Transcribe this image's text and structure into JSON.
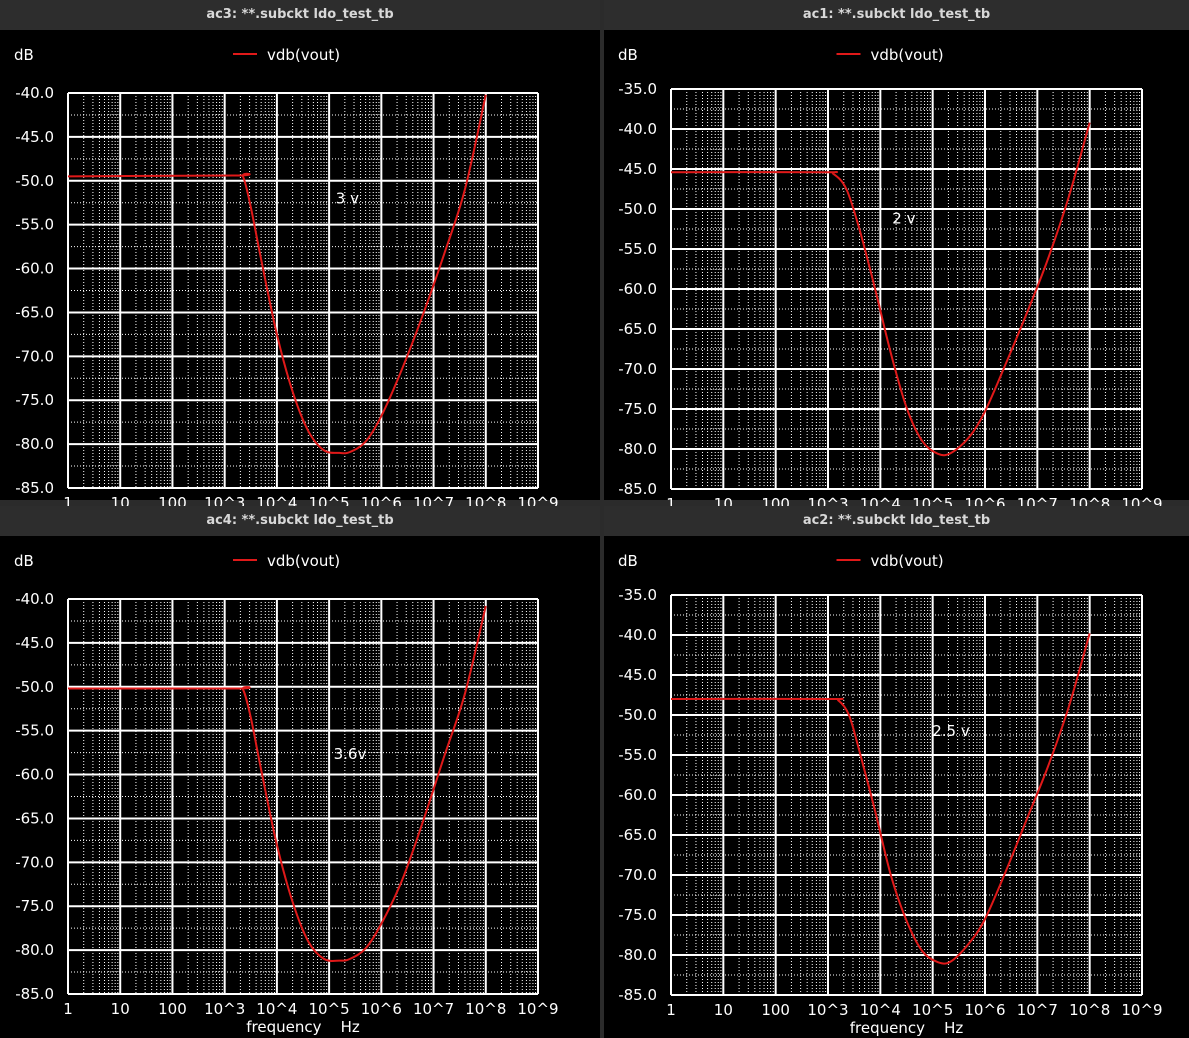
{
  "colors": {
    "background": "#000000",
    "grid": "#ffffff",
    "trace": "#e01919",
    "text": "#ffffff",
    "titlebar": "#2d2d2d",
    "title_text": "#d8d8d8"
  },
  "chart_data": [
    {
      "window_title": "ac3: **.subckt ldo_test_tb",
      "type": "line",
      "ylabel": "dB",
      "xlabel": "",
      "xscale": "log",
      "xlim_decades": [
        0,
        9
      ],
      "ylim": [
        -85,
        -40
      ],
      "yticks": [
        -40,
        -45,
        -50,
        -55,
        -60,
        -65,
        -70,
        -75,
        -80,
        -85
      ],
      "ytick_labels": [
        "-40.0",
        "-45.0",
        "-50.0",
        "-55.0",
        "-60.0",
        "-65.0",
        "-70.0",
        "-75.0",
        "-80.0",
        "-85.0"
      ],
      "xtick_labels": [
        "1",
        "10",
        "100",
        "10^3",
        "10^4",
        "10^5",
        "10^6",
        "10^7",
        "10^8",
        "10^9"
      ],
      "legend": "vdb(vout)",
      "annotation": {
        "text": "3 v",
        "logf": 5.35,
        "db": -52.6
      },
      "series": [
        {
          "name": "vdb(vout)",
          "points": [
            [
              0,
              -49.5
            ],
            [
              3.2,
              -49.4
            ],
            [
              3.35,
              -49.5
            ],
            [
              3.5,
              -53
            ],
            [
              3.7,
              -59
            ],
            [
              4.0,
              -67.5
            ],
            [
              4.3,
              -74
            ],
            [
              4.6,
              -78.5
            ],
            [
              4.9,
              -80.7
            ],
            [
              5.2,
              -81.0
            ],
            [
              5.4,
              -80.9
            ],
            [
              5.7,
              -79.7
            ],
            [
              6.0,
              -76.8
            ],
            [
              6.4,
              -71.4
            ],
            [
              6.8,
              -65.2
            ],
            [
              7.2,
              -58.4
            ],
            [
              7.6,
              -51
            ],
            [
              8.0,
              -40.2
            ]
          ]
        }
      ]
    },
    {
      "window_title": "ac1: **.subckt ldo_test_tb",
      "type": "line",
      "ylabel": "dB",
      "xlabel": "",
      "xscale": "log",
      "xlim_decades": [
        0,
        9
      ],
      "ylim": [
        -85,
        -35
      ],
      "yticks": [
        -35,
        -40,
        -45,
        -50,
        -55,
        -60,
        -65,
        -70,
        -75,
        -80,
        -85
      ],
      "ytick_labels": [
        "-35.0",
        "-40.0",
        "-45.0",
        "-50.0",
        "-55.0",
        "-60.0",
        "-65.0",
        "-70.0",
        "-75.0",
        "-80.0",
        "-85.0"
      ],
      "xtick_labels": [
        "1",
        "10",
        "100",
        "10^3",
        "10^4",
        "10^5",
        "10^6",
        "10^7",
        "10^8",
        "10^9"
      ],
      "legend": "vdb(vout)",
      "annotation": {
        "text": "2 v",
        "logf": 4.45,
        "db": -51.8
      },
      "series": [
        {
          "name": "vdb(vout)",
          "points": [
            [
              0,
              -45.4
            ],
            [
              2.9,
              -45.4
            ],
            [
              3.1,
              -45.6
            ],
            [
              3.35,
              -47.5
            ],
            [
              3.6,
              -52.5
            ],
            [
              3.9,
              -60
            ],
            [
              4.2,
              -68
            ],
            [
              4.5,
              -74.8
            ],
            [
              4.8,
              -79
            ],
            [
              5.1,
              -80.6
            ],
            [
              5.35,
              -80.5
            ],
            [
              5.7,
              -78.5
            ],
            [
              6.0,
              -75.3
            ],
            [
              6.4,
              -69.3
            ],
            [
              6.8,
              -63
            ],
            [
              7.2,
              -56.3
            ],
            [
              7.6,
              -48.5
            ],
            [
              8.0,
              -39.2
            ]
          ]
        }
      ]
    },
    {
      "window_title": "ac4: **.subckt ldo_test_tb",
      "type": "line",
      "ylabel": "dB",
      "xlabel": "frequency    Hz",
      "xscale": "log",
      "xlim_decades": [
        0,
        9
      ],
      "ylim": [
        -85,
        -40
      ],
      "yticks": [
        -40,
        -45,
        -50,
        -55,
        -60,
        -65,
        -70,
        -75,
        -80,
        -85
      ],
      "ytick_labels": [
        "-40.0",
        "-45.0",
        "-50.0",
        "-55.0",
        "-60.0",
        "-65.0",
        "-70.0",
        "-75.0",
        "-80.0",
        "-85.0"
      ],
      "xtick_labels": [
        "1",
        "10",
        "100",
        "10^3",
        "10^4",
        "10^5",
        "10^6",
        "10^7",
        "10^8",
        "10^9"
      ],
      "legend": "vdb(vout)",
      "annotation": {
        "text": "3.6v",
        "logf": 5.4,
        "db": -58.2
      },
      "series": [
        {
          "name": "vdb(vout)",
          "points": [
            [
              0,
              -50.2
            ],
            [
              3.2,
              -50.2
            ],
            [
              3.35,
              -50.3
            ],
            [
              3.5,
              -53.5
            ],
            [
              3.7,
              -59.5
            ],
            [
              4.0,
              -68
            ],
            [
              4.3,
              -74.5
            ],
            [
              4.6,
              -79
            ],
            [
              4.9,
              -81
            ],
            [
              5.2,
              -81.2
            ],
            [
              5.4,
              -81.0
            ],
            [
              5.7,
              -79.8
            ],
            [
              6.0,
              -77
            ],
            [
              6.4,
              -72
            ],
            [
              6.8,
              -65.3
            ],
            [
              7.2,
              -58
            ],
            [
              7.6,
              -50.8
            ],
            [
              8.0,
              -40.8
            ]
          ]
        }
      ]
    },
    {
      "window_title": "ac2: **.subckt ldo_test_tb",
      "type": "line",
      "ylabel": "dB",
      "xlabel": "frequency    Hz",
      "xscale": "log",
      "xlim_decades": [
        0,
        9
      ],
      "ylim": [
        -85,
        -35
      ],
      "yticks": [
        -35,
        -40,
        -45,
        -50,
        -55,
        -60,
        -65,
        -70,
        -75,
        -80,
        -85
      ],
      "ytick_labels": [
        "-35.0",
        "-40.0",
        "-45.0",
        "-50.0",
        "-55.0",
        "-60.0",
        "-65.0",
        "-70.0",
        "-75.0",
        "-80.0",
        "-85.0"
      ],
      "xtick_labels": [
        "1",
        "10",
        "100",
        "10^3",
        "10^4",
        "10^5",
        "10^6",
        "10^7",
        "10^8",
        "10^9"
      ],
      "legend": "vdb(vout)",
      "annotation": {
        "text": "2.5 v",
        "logf": 5.35,
        "db": -52.6
      },
      "series": [
        {
          "name": "vdb(vout)",
          "points": [
            [
              0,
              -48
            ],
            [
              3.0,
              -48
            ],
            [
              3.2,
              -48.2
            ],
            [
              3.4,
              -50
            ],
            [
              3.6,
              -54.5
            ],
            [
              3.9,
              -62
            ],
            [
              4.2,
              -70
            ],
            [
              4.5,
              -75.7
            ],
            [
              4.8,
              -79.5
            ],
            [
              5.1,
              -80.9
            ],
            [
              5.35,
              -80.8
            ],
            [
              5.7,
              -78.5
            ],
            [
              6.0,
              -75.5
            ],
            [
              6.4,
              -69.5
            ],
            [
              6.8,
              -63
            ],
            [
              7.2,
              -56.5
            ],
            [
              7.6,
              -49
            ],
            [
              8.0,
              -39.8
            ]
          ]
        }
      ]
    }
  ]
}
